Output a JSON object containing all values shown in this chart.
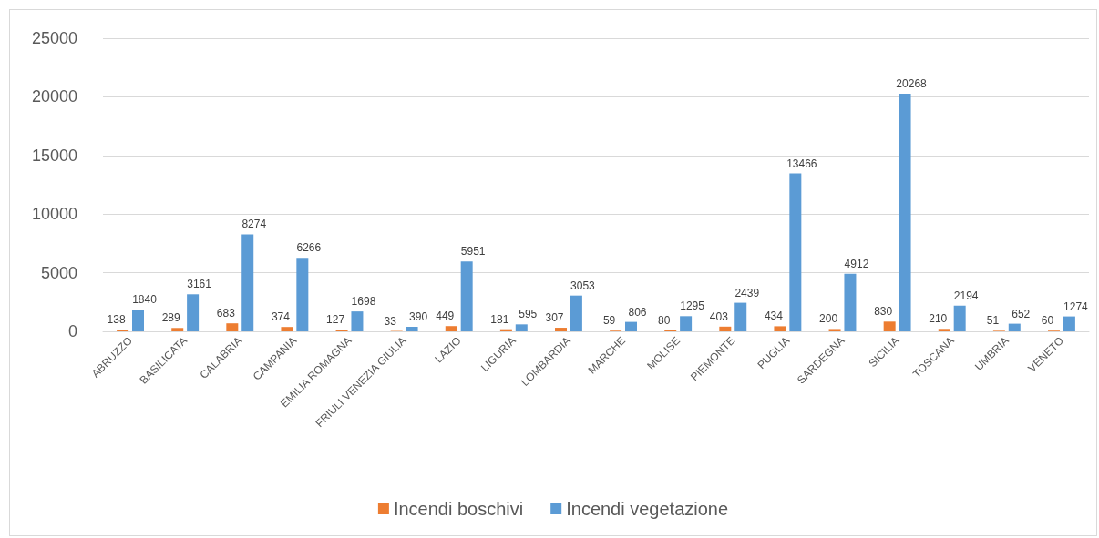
{
  "chart_data": {
    "type": "bar",
    "categories": [
      "ABRUZZO",
      "BASILICATA",
      "CALABRIA",
      "CAMPANIA",
      "EMILIA ROMAGNA",
      "FRIULI VENEZIA GIULIA",
      "LAZIO",
      "LIGURIA",
      "LOMBARDIA",
      "MARCHE",
      "MOLISE",
      "PIEMONTE",
      "PUGLIA",
      "SARDEGNA",
      "SICILIA",
      "TOSCANA",
      "UMBRIA",
      "VENETO"
    ],
    "series": [
      {
        "name": "Incendi boschivi",
        "color": "#ed7d31",
        "values": [
          138,
          289,
          683,
          374,
          127,
          33,
          449,
          181,
          307,
          59,
          80,
          403,
          434,
          200,
          830,
          210,
          51,
          60
        ]
      },
      {
        "name": "Incendi vegetazione",
        "color": "#5b9bd5",
        "values": [
          1840,
          3161,
          8274,
          6266,
          1698,
          390,
          5951,
          595,
          3053,
          806,
          1295,
          2439,
          13466,
          4912,
          20268,
          2194,
          652,
          1274
        ]
      }
    ],
    "ylim": [
      0,
      25000
    ],
    "yticks": [
      0,
      5000,
      10000,
      15000,
      20000,
      25000
    ],
    "grid": "y",
    "legend": "bottom",
    "data_labels": true
  }
}
